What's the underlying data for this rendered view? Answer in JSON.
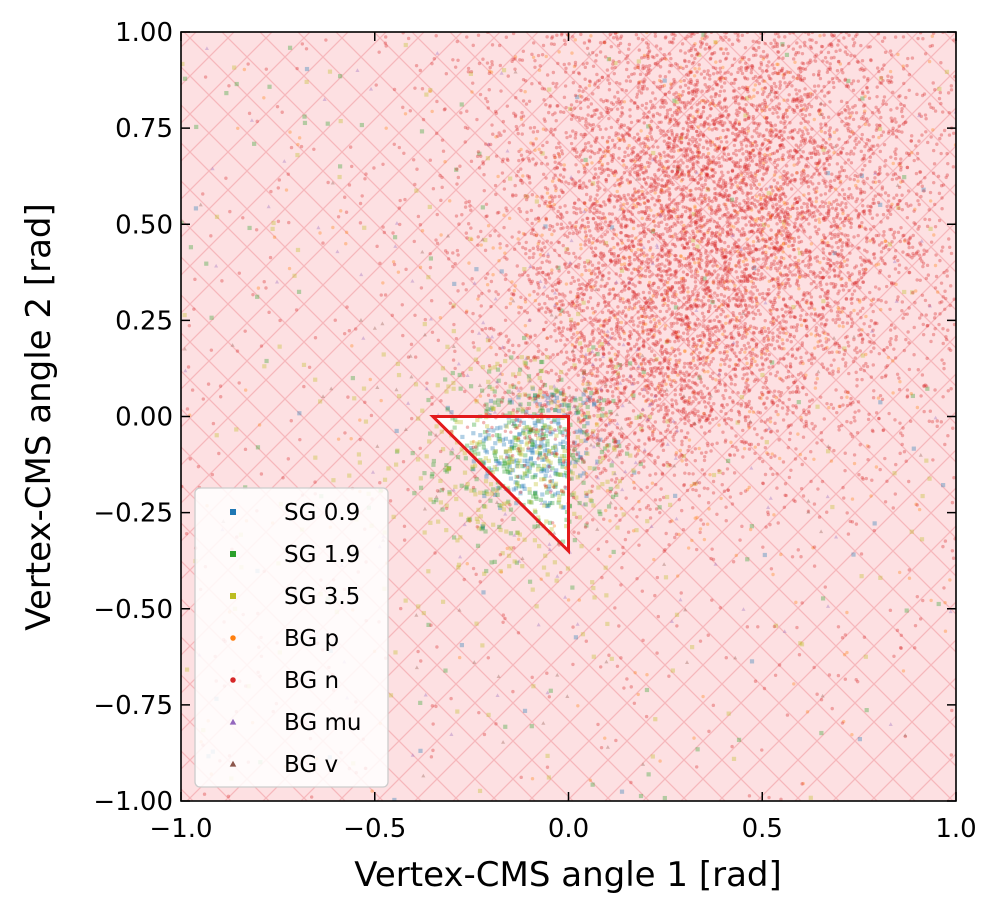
{
  "chart_data": {
    "type": "scatter",
    "xlabel": "Vertex-CMS angle 1 [rad]",
    "ylabel": "Vertex-CMS angle 2 [rad]",
    "xlim": [
      -1.0,
      1.0
    ],
    "ylim": [
      -1.0,
      1.0
    ],
    "x_ticks": [
      {
        "value": -1.0,
        "label": "−1.0"
      },
      {
        "value": -0.5,
        "label": "−0.5"
      },
      {
        "value": 0.0,
        "label": "0.0"
      },
      {
        "value": 0.5,
        "label": "0.5"
      },
      {
        "value": 1.0,
        "label": "1.0"
      }
    ],
    "y_ticks": [
      {
        "value": -1.0,
        "label": "−1.00"
      },
      {
        "value": -0.75,
        "label": "−0.75"
      },
      {
        "value": -0.5,
        "label": "−0.50"
      },
      {
        "value": -0.25,
        "label": "−0.25"
      },
      {
        "value": 0.0,
        "label": "0.00"
      },
      {
        "value": 0.25,
        "label": "0.25"
      },
      {
        "value": 0.5,
        "label": "0.50"
      },
      {
        "value": 0.75,
        "label": "0.75"
      },
      {
        "value": 1.0,
        "label": "1.00"
      }
    ],
    "grid": false,
    "legend_position": "lower-left",
    "excluded_region": {
      "fill": "#fde0e2",
      "hatch": "#f6b8bc",
      "hatch_style": "cross-diagonal"
    },
    "signal_region": {
      "vertices": [
        [
          -0.35,
          0.0
        ],
        [
          0.0,
          0.0
        ],
        [
          0.0,
          -0.35
        ]
      ],
      "color": "#e31a1c"
    },
    "series": [
      {
        "name": "SG 0.9",
        "color": "#1f77b4",
        "marker": "square",
        "clusters": [
          {
            "center": [
              -0.08,
              -0.08
            ],
            "spread": [
              0.09,
              0.09
            ],
            "count": 220
          }
        ],
        "uniform": 40
      },
      {
        "name": "SG 1.9",
        "color": "#2ca02c",
        "marker": "square",
        "clusters": [
          {
            "center": [
              -0.1,
              -0.1
            ],
            "spread": [
              0.12,
              0.12
            ],
            "count": 300
          }
        ],
        "uniform": 90
      },
      {
        "name": "SG 3.5",
        "color": "#bcbd22",
        "marker": "square",
        "clusters": [
          {
            "center": [
              -0.12,
              -0.12
            ],
            "spread": [
              0.17,
              0.17
            ],
            "count": 300
          }
        ],
        "uniform": 160
      },
      {
        "name": "BG p",
        "color": "#ff7f0e",
        "marker": "circle",
        "clusters": [
          {
            "center": [
              0.35,
              0.45
            ],
            "spread": [
              0.3,
              0.35
            ],
            "count": 700
          }
        ],
        "uniform": 120
      },
      {
        "name": "BG n",
        "color": "#d62728",
        "marker": "circle",
        "clusters": [
          {
            "center": [
              0.4,
              0.55
            ],
            "spread": [
              0.3,
              0.32
            ],
            "count": 6500
          },
          {
            "center": [
              0.2,
              0.1
            ],
            "spread": [
              0.18,
              0.15
            ],
            "count": 900
          }
        ],
        "uniform": 520
      },
      {
        "name": "BG mu",
        "color": "#9467bd",
        "marker": "triangle",
        "clusters": [
          {
            "center": [
              0.05,
              0.05
            ],
            "spread": [
              0.25,
              0.25
            ],
            "count": 120
          }
        ],
        "uniform": 60
      },
      {
        "name": "BG v",
        "color": "#8c564b",
        "marker": "triangle",
        "clusters": [
          {
            "center": [
              0.1,
              0.0
            ],
            "spread": [
              0.35,
              0.4
            ],
            "count": 60
          }
        ],
        "uniform": 40
      }
    ]
  }
}
